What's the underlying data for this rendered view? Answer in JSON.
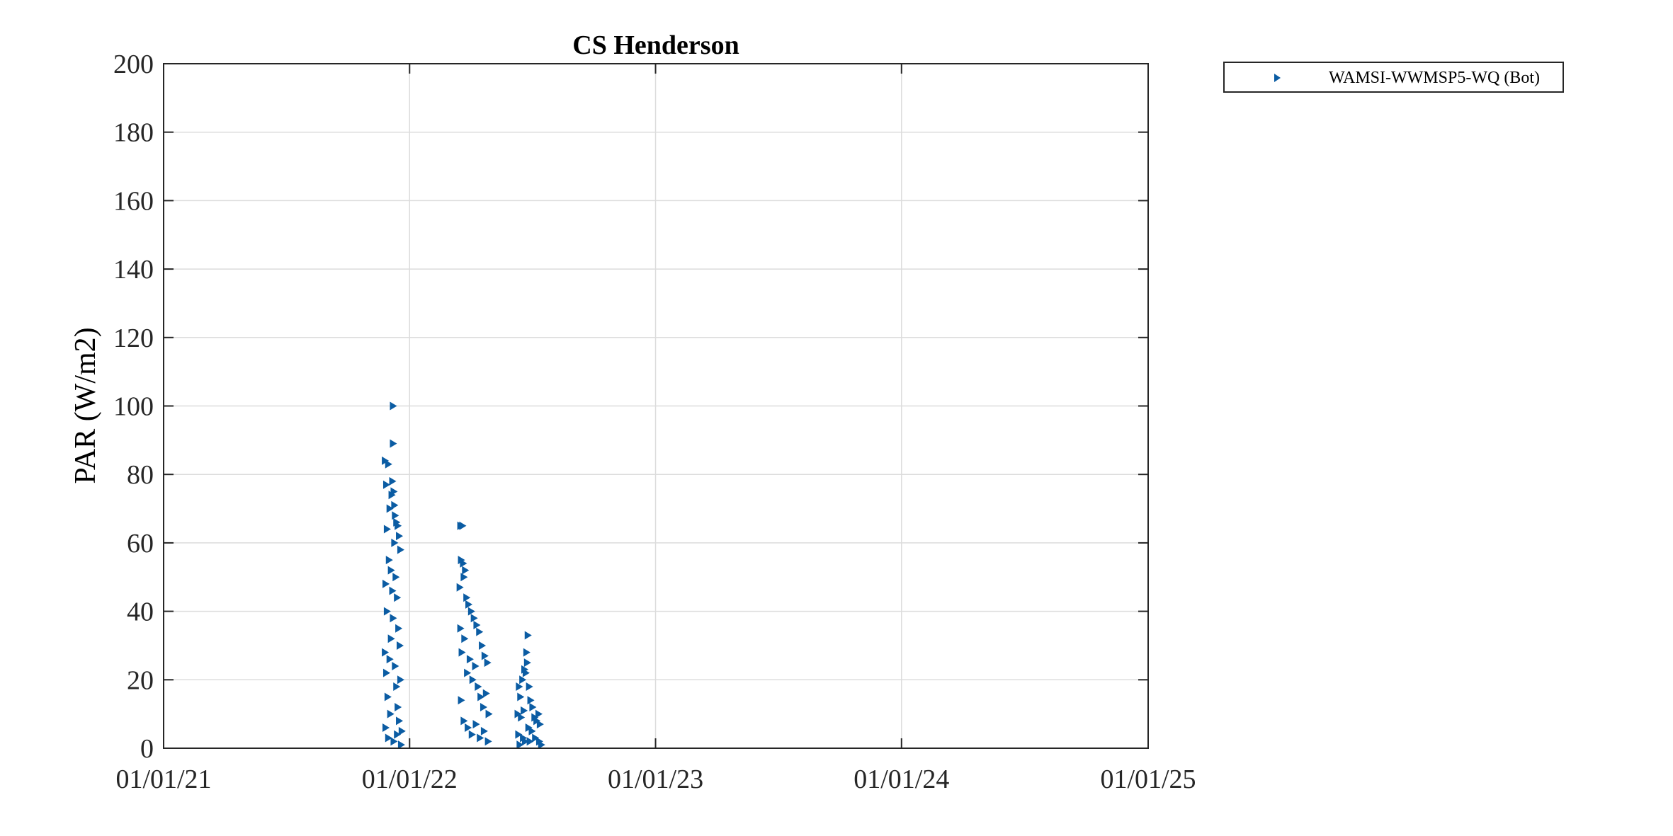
{
  "chart_data": {
    "type": "scatter",
    "title": "CS Henderson",
    "xlabel": "",
    "ylabel": "PAR (W/m2)",
    "x_axis_type": "date",
    "xlim": [
      "2021-01-01",
      "2025-01-01"
    ],
    "xticks": [
      "2021-01-01",
      "2022-01-01",
      "2023-01-01",
      "2024-01-01",
      "2025-01-01"
    ],
    "xtick_labels": [
      "01/01/21",
      "01/01/22",
      "01/01/23",
      "01/01/24",
      "01/01/25"
    ],
    "ylim": [
      0,
      200
    ],
    "yticks": [
      0,
      20,
      40,
      60,
      80,
      100,
      120,
      140,
      160,
      180,
      200
    ],
    "ytick_labels": [
      "0",
      "20",
      "40",
      "60",
      "80",
      "100",
      "120",
      "140",
      "160",
      "180",
      "200"
    ],
    "grid": true,
    "legend_position": "top-right outside",
    "marker": "triangle-right",
    "series": [
      {
        "name": "WAMSI-WWMSP5-WQ (Bot)",
        "color": "#0B5CA3",
        "points": [
          [
            "2021-11-25",
            84
          ],
          [
            "2021-11-27",
            77
          ],
          [
            "2021-11-28",
            64
          ],
          [
            "2021-11-30",
            83
          ],
          [
            "2021-12-02",
            70
          ],
          [
            "2021-12-05",
            74
          ],
          [
            "2021-12-07",
            100
          ],
          [
            "2021-12-07",
            89
          ],
          [
            "2021-12-06",
            78
          ],
          [
            "2021-12-08",
            75
          ],
          [
            "2021-12-09",
            71
          ],
          [
            "2021-12-10",
            68
          ],
          [
            "2021-12-12",
            66
          ],
          [
            "2021-12-14",
            65
          ],
          [
            "2021-12-16",
            62
          ],
          [
            "2021-12-18",
            58
          ],
          [
            "2021-11-26",
            48
          ],
          [
            "2021-11-28",
            40
          ],
          [
            "2021-12-01",
            55
          ],
          [
            "2021-12-04",
            52
          ],
          [
            "2021-12-06",
            46
          ],
          [
            "2021-12-09",
            60
          ],
          [
            "2021-12-11",
            50
          ],
          [
            "2021-12-13",
            44
          ],
          [
            "2021-12-15",
            35
          ],
          [
            "2021-12-17",
            30
          ],
          [
            "2021-11-25",
            28
          ],
          [
            "2021-11-27",
            22
          ],
          [
            "2021-11-29",
            15
          ],
          [
            "2021-12-02",
            26
          ],
          [
            "2021-12-04",
            32
          ],
          [
            "2021-12-07",
            38
          ],
          [
            "2021-12-10",
            24
          ],
          [
            "2021-12-12",
            18
          ],
          [
            "2021-12-14",
            12
          ],
          [
            "2021-12-16",
            8
          ],
          [
            "2021-12-18",
            20
          ],
          [
            "2021-12-20",
            5
          ],
          [
            "2021-11-26",
            6
          ],
          [
            "2021-11-30",
            3
          ],
          [
            "2021-12-03",
            10
          ],
          [
            "2021-12-08",
            2
          ],
          [
            "2021-12-13",
            4
          ],
          [
            "2021-12-19",
            1
          ],
          [
            "2022-03-17",
            65
          ],
          [
            "2022-03-20",
            65
          ],
          [
            "2022-03-18",
            55
          ],
          [
            "2022-03-21",
            54
          ],
          [
            "2022-03-24",
            52
          ],
          [
            "2022-03-16",
            47
          ],
          [
            "2022-03-22",
            50
          ],
          [
            "2022-03-26",
            44
          ],
          [
            "2022-03-29",
            42
          ],
          [
            "2022-04-02",
            40
          ],
          [
            "2022-04-06",
            38
          ],
          [
            "2022-04-10",
            36
          ],
          [
            "2022-04-14",
            34
          ],
          [
            "2022-04-18",
            30
          ],
          [
            "2022-04-22",
            27
          ],
          [
            "2022-04-26",
            25
          ],
          [
            "2022-03-17",
            35
          ],
          [
            "2022-03-19",
            28
          ],
          [
            "2022-03-23",
            32
          ],
          [
            "2022-03-27",
            22
          ],
          [
            "2022-03-31",
            26
          ],
          [
            "2022-04-04",
            20
          ],
          [
            "2022-04-08",
            24
          ],
          [
            "2022-04-12",
            18
          ],
          [
            "2022-04-16",
            15
          ],
          [
            "2022-04-20",
            12
          ],
          [
            "2022-04-24",
            16
          ],
          [
            "2022-04-28",
            10
          ],
          [
            "2022-03-18",
            14
          ],
          [
            "2022-03-22",
            8
          ],
          [
            "2022-03-28",
            6
          ],
          [
            "2022-04-03",
            4
          ],
          [
            "2022-04-09",
            7
          ],
          [
            "2022-04-15",
            3
          ],
          [
            "2022-04-21",
            5
          ],
          [
            "2022-04-27",
            2
          ],
          [
            "2022-06-25",
            33
          ],
          [
            "2022-06-23",
            28
          ],
          [
            "2022-06-24",
            25
          ],
          [
            "2022-06-20",
            23
          ],
          [
            "2022-06-22",
            22
          ],
          [
            "2022-06-17",
            20
          ],
          [
            "2022-06-12",
            18
          ],
          [
            "2022-06-27",
            18
          ],
          [
            "2022-06-14",
            15
          ],
          [
            "2022-06-29",
            14
          ],
          [
            "2022-07-02",
            12
          ],
          [
            "2022-06-10",
            10
          ],
          [
            "2022-07-05",
            9
          ],
          [
            "2022-07-08",
            8
          ],
          [
            "2022-07-11",
            10
          ],
          [
            "2022-07-13",
            7
          ],
          [
            "2022-06-15",
            9
          ],
          [
            "2022-06-19",
            11
          ],
          [
            "2022-06-26",
            6
          ],
          [
            "2022-07-01",
            5
          ],
          [
            "2022-06-11",
            4
          ],
          [
            "2022-06-18",
            3
          ],
          [
            "2022-06-28",
            2
          ],
          [
            "2022-07-06",
            3
          ],
          [
            "2022-07-12",
            2
          ],
          [
            "2022-07-15",
            1
          ],
          [
            "2022-06-13",
            1
          ],
          [
            "2022-06-21",
            2
          ]
        ]
      }
    ]
  }
}
